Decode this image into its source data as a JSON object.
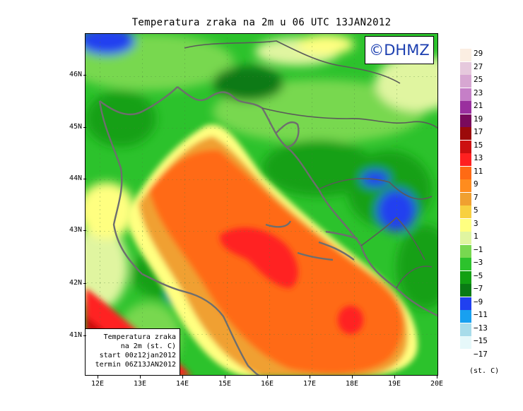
{
  "title": "Temperatura zraka na 2m u 06 UTC 13JAN2012",
  "logo": "©DHMZ",
  "info": {
    "line1": "Temperatura zraka",
    "line2": "na 2m (st. C)",
    "line3": "start 00z12jan2012",
    "line4": "termin 06Z13JAN2012"
  },
  "lat_labels": [
    "46N",
    "45N",
    "44N",
    "43N",
    "42N",
    "41N"
  ],
  "lon_labels": [
    "12E",
    "13E",
    "14E",
    "15E",
    "16E",
    "17E",
    "18E",
    "19E",
    "20E"
  ],
  "legend": {
    "ticks": [
      "29",
      "27",
      "25",
      "23",
      "21",
      "19",
      "17",
      "15",
      "13",
      "11",
      "9",
      "7",
      "5",
      "3",
      "1",
      "−1",
      "−3",
      "−5",
      "−7",
      "−9",
      "−11",
      "−13",
      "−15",
      "−17"
    ],
    "colors": [
      "#fbeee2",
      "#e6c9dd",
      "#d7a7d2",
      "#c57fc7",
      "#9a2f9e",
      "#7a0a5c",
      "#9c0a0a",
      "#cc1010",
      "#ff2020",
      "#ff6a14",
      "#ff8c1e",
      "#f0a030",
      "#f8d040",
      "#ffff80",
      "#e0f5a0",
      "#78d850",
      "#2cc22c",
      "#12a012",
      "#0a7a14",
      "#2040f0",
      "#18a0f0",
      "#a8dcea",
      "#e6f8fa",
      "#ffffff"
    ],
    "unit": "(st. C)"
  }
}
